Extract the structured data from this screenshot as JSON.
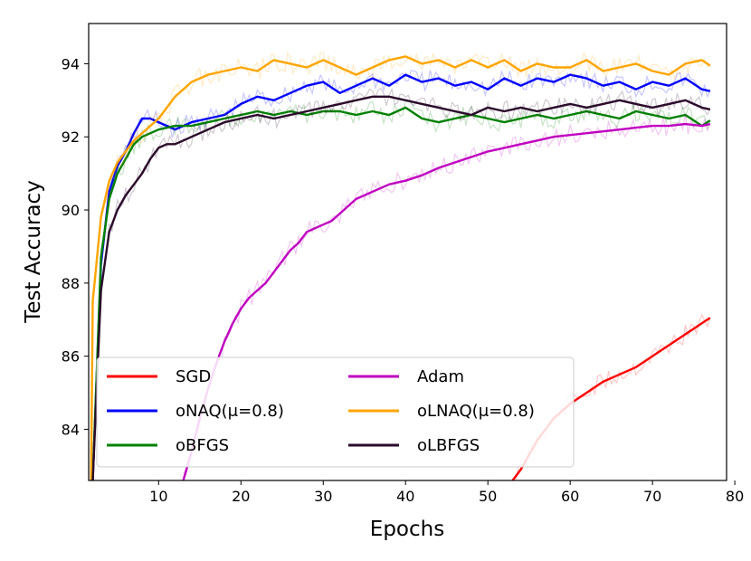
{
  "chart_data": {
    "type": "line",
    "xlabel": "Epochs",
    "ylabel": "Test Accuracy",
    "xlim": [
      1.5,
      79
    ],
    "ylim": [
      82.6,
      95.1
    ],
    "xticks": [
      10,
      20,
      30,
      40,
      50,
      60,
      70,
      80
    ],
    "yticks": [
      84,
      86,
      88,
      90,
      92,
      94
    ],
    "grid": false,
    "legend_position": "bottom-left",
    "series": [
      {
        "name": "SGD",
        "color": "#ff0000",
        "x": [
          53,
          54,
          56,
          58,
          60,
          62,
          64,
          66,
          68,
          70,
          72,
          74,
          76,
          77
        ],
        "y": [
          82.6,
          82.9,
          83.7,
          84.3,
          84.7,
          85.0,
          85.3,
          85.5,
          85.7,
          86.0,
          86.3,
          86.6,
          86.9,
          87.05
        ]
      },
      {
        "name": "oNAQ(μ=0.8)",
        "color": "#0000ff",
        "x": [
          2,
          3,
          4,
          5,
          6,
          7,
          8,
          9,
          10,
          11,
          12,
          14,
          16,
          18,
          20,
          22,
          24,
          26,
          28,
          30,
          32,
          34,
          36,
          38,
          40,
          42,
          44,
          46,
          48,
          50,
          52,
          54,
          56,
          58,
          60,
          62,
          64,
          66,
          68,
          70,
          72,
          74,
          76,
          77
        ],
        "y": [
          82.6,
          88.5,
          90.5,
          91.2,
          91.6,
          92.1,
          92.5,
          92.5,
          92.4,
          92.3,
          92.2,
          92.4,
          92.5,
          92.6,
          92.9,
          93.1,
          93.0,
          93.2,
          93.4,
          93.5,
          93.2,
          93.4,
          93.6,
          93.4,
          93.7,
          93.5,
          93.6,
          93.4,
          93.5,
          93.3,
          93.6,
          93.4,
          93.6,
          93.5,
          93.7,
          93.6,
          93.4,
          93.5,
          93.3,
          93.5,
          93.4,
          93.6,
          93.3,
          93.25
        ]
      },
      {
        "name": "oBFGS",
        "color": "#008000",
        "x": [
          2,
          3,
          4,
          5,
          6,
          7,
          8,
          9,
          10,
          12,
          14,
          16,
          18,
          20,
          22,
          24,
          26,
          28,
          30,
          32,
          34,
          36,
          38,
          40,
          42,
          44,
          46,
          48,
          50,
          52,
          54,
          56,
          58,
          60,
          62,
          64,
          66,
          68,
          70,
          72,
          74,
          76,
          77
        ],
        "y": [
          82.6,
          88.7,
          90.3,
          91.0,
          91.4,
          91.8,
          92.0,
          92.1,
          92.2,
          92.3,
          92.3,
          92.4,
          92.5,
          92.6,
          92.7,
          92.6,
          92.7,
          92.6,
          92.7,
          92.7,
          92.6,
          92.7,
          92.6,
          92.8,
          92.5,
          92.4,
          92.5,
          92.6,
          92.5,
          92.4,
          92.5,
          92.6,
          92.5,
          92.6,
          92.7,
          92.6,
          92.5,
          92.7,
          92.6,
          92.5,
          92.6,
          92.3,
          92.45
        ]
      },
      {
        "name": "Adam",
        "color": "#c000c0",
        "x": [
          13,
          14,
          15,
          16,
          17,
          18,
          19,
          20,
          21,
          22,
          23,
          24,
          25,
          26,
          27,
          28,
          29,
          30,
          31,
          32,
          33,
          34,
          35,
          36,
          37,
          38,
          39,
          40,
          42,
          44,
          46,
          48,
          50,
          52,
          54,
          56,
          58,
          60,
          62,
          64,
          66,
          68,
          70,
          72,
          74,
          76,
          77
        ],
        "y": [
          82.6,
          83.4,
          84.3,
          85.1,
          85.8,
          86.4,
          86.9,
          87.3,
          87.6,
          87.8,
          88.0,
          88.3,
          88.6,
          88.9,
          89.1,
          89.4,
          89.5,
          89.6,
          89.7,
          89.9,
          90.1,
          90.3,
          90.4,
          90.5,
          90.6,
          90.7,
          90.75,
          90.8,
          90.95,
          91.15,
          91.3,
          91.45,
          91.6,
          91.7,
          91.8,
          91.9,
          92.0,
          92.05,
          92.1,
          92.15,
          92.2,
          92.25,
          92.3,
          92.3,
          92.35,
          92.3,
          92.35
        ]
      },
      {
        "name": "oLNAQ(μ=0.8)",
        "color": "#ffa500",
        "x": [
          1.8,
          2,
          3,
          4,
          5,
          6,
          7,
          8,
          9,
          10,
          11,
          12,
          14,
          16,
          18,
          20,
          22,
          24,
          26,
          28,
          30,
          32,
          34,
          36,
          38,
          40,
          42,
          44,
          46,
          48,
          50,
          52,
          54,
          56,
          58,
          60,
          62,
          64,
          66,
          68,
          70,
          72,
          74,
          76,
          77
        ],
        "y": [
          82.6,
          87.5,
          89.8,
          90.8,
          91.3,
          91.6,
          91.9,
          92.1,
          92.3,
          92.5,
          92.8,
          93.1,
          93.5,
          93.7,
          93.8,
          93.9,
          93.8,
          94.1,
          94.0,
          93.9,
          94.1,
          93.9,
          93.7,
          93.9,
          94.1,
          94.2,
          94.0,
          94.1,
          93.9,
          94.1,
          93.9,
          94.1,
          93.8,
          94.0,
          93.9,
          93.9,
          94.1,
          93.8,
          93.9,
          94.0,
          93.8,
          93.7,
          94.0,
          94.1,
          93.95
        ]
      },
      {
        "name": "oLBFGS",
        "color": "#2a0a2a",
        "x": [
          2,
          3,
          4,
          5,
          6,
          7,
          8,
          9,
          10,
          11,
          12,
          13,
          14,
          16,
          18,
          20,
          22,
          24,
          26,
          28,
          30,
          32,
          34,
          36,
          38,
          40,
          42,
          44,
          46,
          48,
          50,
          52,
          54,
          56,
          58,
          60,
          62,
          64,
          66,
          68,
          70,
          72,
          74,
          76,
          77
        ],
        "y": [
          82.6,
          87.8,
          89.4,
          90.0,
          90.4,
          90.7,
          91.0,
          91.4,
          91.7,
          91.8,
          91.8,
          91.9,
          92.0,
          92.2,
          92.4,
          92.5,
          92.6,
          92.5,
          92.6,
          92.7,
          92.8,
          92.9,
          93.0,
          93.1,
          93.1,
          93.0,
          92.9,
          92.8,
          92.7,
          92.6,
          92.8,
          92.7,
          92.8,
          92.7,
          92.8,
          92.9,
          92.8,
          92.9,
          93.0,
          92.9,
          92.8,
          92.9,
          93.0,
          92.8,
          92.75
        ]
      }
    ]
  }
}
